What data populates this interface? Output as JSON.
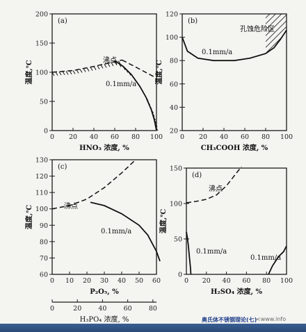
{
  "page": {
    "caption": "奥氏体不锈钢理论(七)",
    "url": "<www.info"
  },
  "chart_data": [
    {
      "type": "line",
      "panel_label": "(a)",
      "xlabel": "HNO₃ 浓度, %",
      "ylabel": "温度,℃",
      "xlim": [
        0,
        100
      ],
      "ylim": [
        0,
        200
      ],
      "xticks": [
        0,
        20,
        40,
        60,
        80,
        100
      ],
      "yticks": [
        0,
        50,
        100,
        150,
        200
      ],
      "series": [
        {
          "style": "dashed",
          "hatched": true,
          "x": [
            0,
            20,
            40,
            60,
            67
          ],
          "y": [
            100,
            103,
            110,
            118,
            121
          ]
        },
        {
          "style": "dashed",
          "x": [
            67,
            80,
            100
          ],
          "y": [
            121,
            109,
            90
          ]
        },
        {
          "style": "solid",
          "hatched": true,
          "x": [
            60,
            68,
            76,
            84,
            90,
            95,
            98,
            100
          ],
          "y": [
            120,
            110,
            96,
            76,
            57,
            36,
            18,
            0
          ]
        }
      ],
      "annotations": [
        "沸点",
        "0.1mm/a"
      ]
    },
    {
      "type": "line",
      "panel_label": "(b)",
      "xlabel": "CH₃COOH 浓度, %",
      "ylabel": "温度,℃",
      "xlim": [
        0,
        100
      ],
      "ylim": [
        20,
        120
      ],
      "xticks": [
        0,
        20,
        40,
        60,
        80,
        100
      ],
      "yticks": [
        20,
        40,
        60,
        80,
        100,
        120
      ],
      "series": [
        {
          "style": "solid",
          "x": [
            0,
            5,
            15,
            30,
            50,
            65,
            80,
            88,
            94,
            100
          ],
          "y": [
            100,
            88,
            82,
            80,
            80,
            82,
            86,
            91,
            98,
            106
          ]
        }
      ],
      "annotations": [
        "孔蚀危险区",
        "0.1mm/a"
      ]
    },
    {
      "type": "line",
      "panel_label": "(c)",
      "xlabel": "P₂O₅, %",
      "xlabel2": "H₃PO₄ 浓度, %",
      "ylabel": "温度,℃",
      "xlim": [
        0,
        60
      ],
      "ylim": [
        60,
        130
      ],
      "xticks": [
        0,
        10,
        20,
        30,
        40,
        50,
        60
      ],
      "xticks2": [
        0,
        20,
        40,
        60,
        80
      ],
      "yticks": [
        60,
        70,
        80,
        90,
        100,
        110,
        120,
        130
      ],
      "series": [
        {
          "style": "dashed",
          "x": [
            0,
            10,
            20,
            30,
            40,
            45,
            48
          ],
          "y": [
            100,
            102,
            106,
            113,
            122,
            127,
            130
          ]
        },
        {
          "style": "solid",
          "x": [
            22,
            30,
            40,
            50,
            55,
            60,
            62
          ],
          "y": [
            104,
            102,
            97,
            90,
            84,
            74,
            68
          ]
        }
      ],
      "annotations": [
        "沸点",
        "0.1mm/a"
      ]
    },
    {
      "type": "line",
      "panel_label": "(d)",
      "xlabel": "H₂SO₄ 浓度, %",
      "ylabel": "温度,℃",
      "xlim": [
        0,
        100
      ],
      "ylim": [
        0,
        150
      ],
      "xticks": [
        0,
        20,
        40,
        60,
        80,
        100
      ],
      "yticks": [
        0,
        50,
        100,
        150
      ],
      "series": [
        {
          "style": "dashed",
          "x": [
            0,
            10,
            20,
            30,
            40,
            50,
            55
          ],
          "y": [
            101,
            103,
            106,
            112,
            125,
            143,
            152
          ]
        },
        {
          "style": "solid",
          "x": [
            0,
            1,
            2,
            3,
            4,
            4.5
          ],
          "y": [
            60,
            52,
            40,
            25,
            10,
            0
          ]
        },
        {
          "style": "solid",
          "x": [
            82,
            86,
            92,
            97,
            100
          ],
          "y": [
            0,
            12,
            25,
            32,
            40
          ]
        }
      ],
      "annotations": [
        "沸点",
        "0.1mm/a",
        "0.1mm/a"
      ]
    }
  ]
}
